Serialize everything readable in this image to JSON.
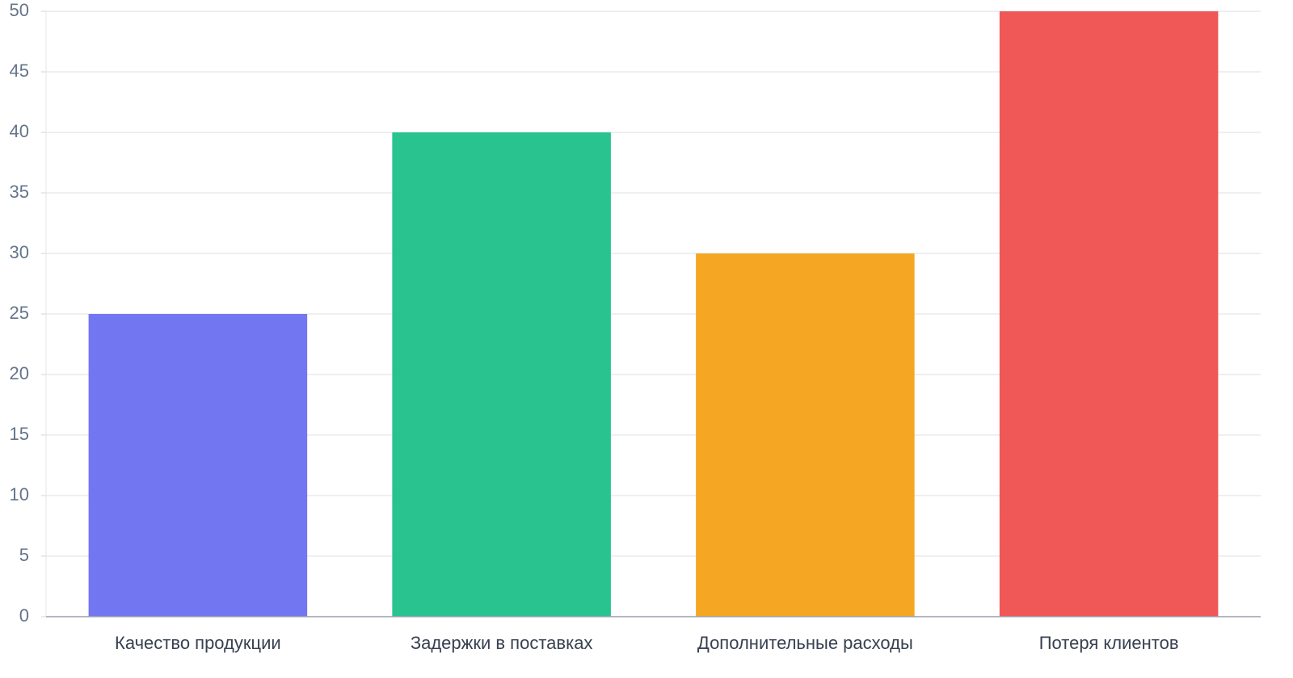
{
  "chart_data": {
    "type": "bar",
    "categories": [
      "Качество продукции",
      "Задержки в поставках",
      "Дополнительные расходы",
      "Потеря клиентов"
    ],
    "values": [
      25,
      40,
      30,
      50
    ],
    "colors": [
      "#7376f1",
      "#29c38f",
      "#f5a724",
      "#f05857"
    ],
    "ylim": [
      0,
      50
    ],
    "yticks": [
      0,
      5,
      10,
      15,
      20,
      25,
      30,
      35,
      40,
      45,
      50
    ],
    "grid": true
  }
}
